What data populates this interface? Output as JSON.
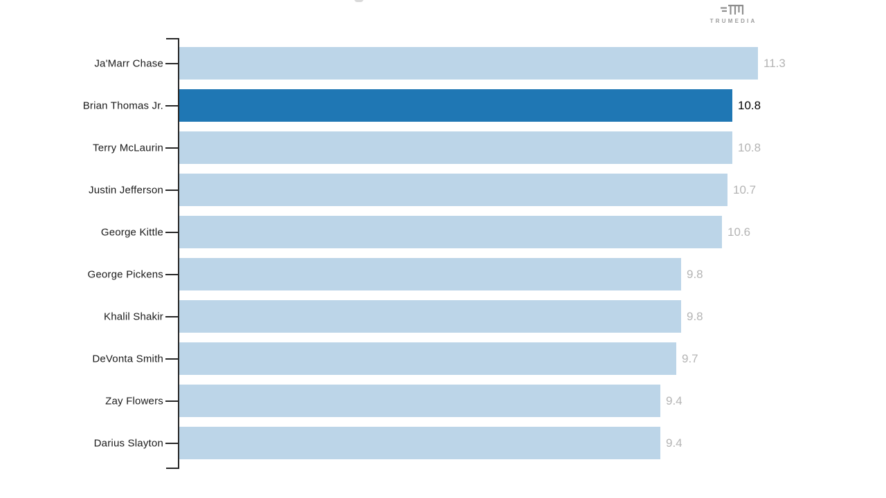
{
  "branding": {
    "logo_text": "TRUMEDIA"
  },
  "chart_data": {
    "type": "bar",
    "orientation": "horizontal",
    "title": "",
    "xlabel": "",
    "ylabel": "",
    "xlim": [
      0,
      11.3
    ],
    "grid": false,
    "legend": "none",
    "categories": [
      "Ja'Marr Chase",
      "Brian Thomas Jr.",
      "Terry McLaurin",
      "Justin Jefferson",
      "George Kittle",
      "George Pickens",
      "Khalil Shakir",
      "DeVonta Smith",
      "Zay Flowers",
      "Darius Slayton"
    ],
    "values": [
      11.3,
      10.8,
      10.8,
      10.7,
      10.6,
      9.8,
      9.8,
      9.7,
      9.4,
      9.4
    ],
    "value_labels": [
      "11.3",
      "10.8",
      "10.8",
      "10.7",
      "10.6",
      "9.8",
      "9.8",
      "9.7",
      "9.4",
      "9.4"
    ],
    "highlight_index": 1,
    "highlighted_category": "Brian Thomas Jr.",
    "colors": {
      "bar_default": "#BCD5E8",
      "bar_highlight": "#1F77B4",
      "value_default": "#B4B4B4",
      "value_highlight": "#000000",
      "label": "#1A1A1A",
      "axis": "#262626",
      "logo": "#8E8E8E"
    }
  }
}
